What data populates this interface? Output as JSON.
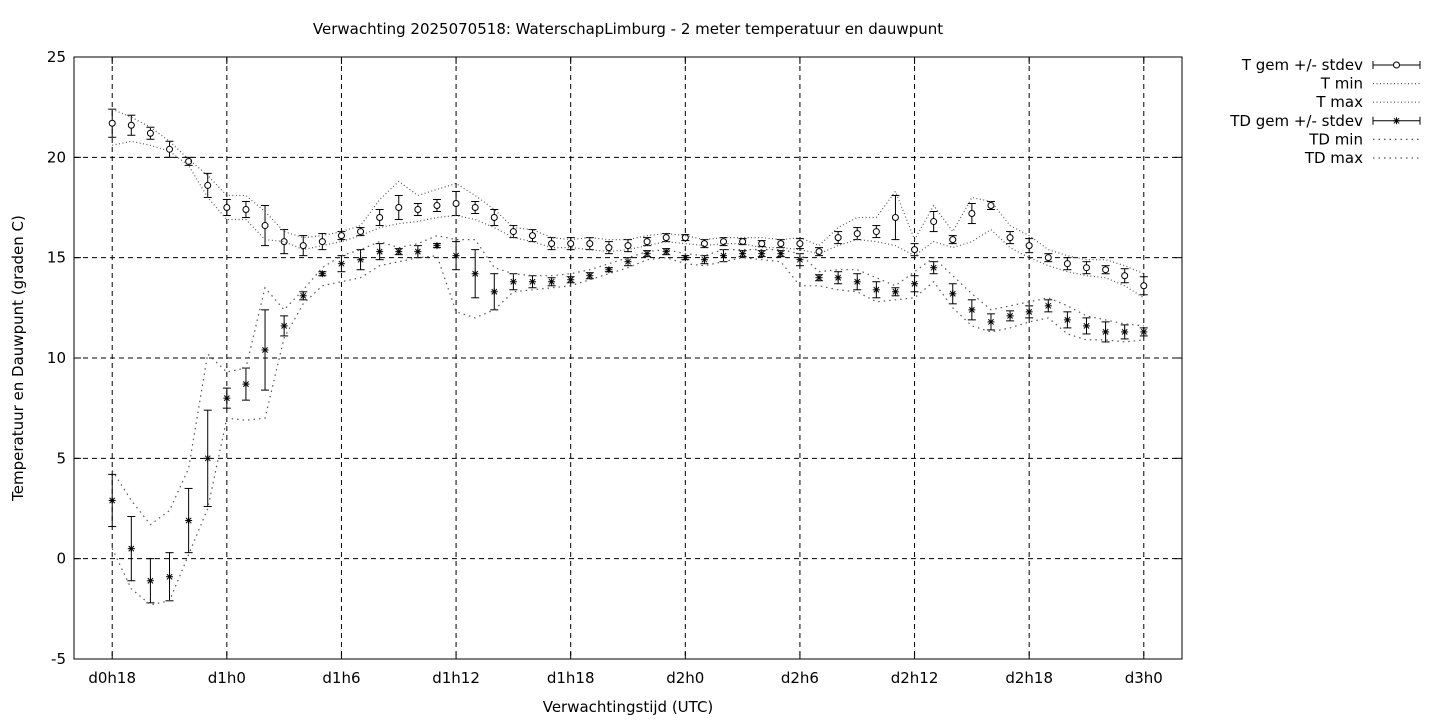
{
  "chart_data": {
    "type": "line",
    "title": "Verwachting 2025070518: WaterschapLimburg - 2 meter temperatuur en dauwpunt",
    "xlabel": "Verwachtingstijd (UTC)",
    "ylabel": "Temperatuur en Dauwpunt (graden C)",
    "ylim": [
      -5,
      25
    ],
    "xlim": [
      -2,
      56
    ],
    "grid": true,
    "legend_position": "right",
    "x_hours": [
      0,
      1,
      2,
      3,
      4,
      5,
      6,
      7,
      8,
      9,
      10,
      11,
      12,
      13,
      14,
      15,
      16,
      17,
      18,
      19,
      20,
      21,
      22,
      23,
      24,
      25,
      26,
      27,
      28,
      29,
      30,
      31,
      32,
      33,
      34,
      35,
      36,
      37,
      38,
      39,
      40,
      41,
      42,
      43,
      44,
      45,
      46,
      47,
      48,
      49,
      50,
      51,
      52,
      53,
      54
    ],
    "x_ticks": [
      {
        "x": 0,
        "label": "d0h18"
      },
      {
        "x": 6,
        "label": "d1h0"
      },
      {
        "x": 12,
        "label": "d1h6"
      },
      {
        "x": 18,
        "label": "d1h12"
      },
      {
        "x": 24,
        "label": "d1h18"
      },
      {
        "x": 30,
        "label": "d2h0"
      },
      {
        "x": 36,
        "label": "d2h6"
      },
      {
        "x": 42,
        "label": "d2h12"
      },
      {
        "x": 48,
        "label": "d2h18"
      },
      {
        "x": 54,
        "label": "d3h0"
      }
    ],
    "y_ticks": [
      -5,
      0,
      5,
      10,
      15,
      20,
      25
    ],
    "series": [
      {
        "name": "T gem +/- stdev",
        "style": "errorbars-circle",
        "mean": [
          21.7,
          21.6,
          21.2,
          20.4,
          19.8,
          18.6,
          17.5,
          17.4,
          16.6,
          15.8,
          15.6,
          15.8,
          16.1,
          16.3,
          17.0,
          17.5,
          17.4,
          17.6,
          17.7,
          17.5,
          17.0,
          16.3,
          16.1,
          15.7,
          15.7,
          15.7,
          15.5,
          15.6,
          15.8,
          16.0,
          16.0,
          15.7,
          15.8,
          15.8,
          15.7,
          15.7,
          15.7,
          15.3,
          16.0,
          16.2,
          16.3,
          17.0,
          15.4,
          16.8,
          15.9,
          17.2,
          17.6,
          16.0,
          15.6,
          15.0,
          14.7,
          14.5,
          14.4,
          14.1,
          13.6
        ],
        "stdev": [
          0.7,
          0.5,
          0.3,
          0.4,
          0.2,
          0.6,
          0.4,
          0.4,
          1.0,
          0.6,
          0.5,
          0.4,
          0.2,
          0.2,
          0.4,
          0.6,
          0.3,
          0.3,
          0.6,
          0.3,
          0.4,
          0.3,
          0.3,
          0.3,
          0.3,
          0.3,
          0.3,
          0.3,
          0.2,
          0.2,
          0.15,
          0.2,
          0.2,
          0.15,
          0.15,
          0.2,
          0.25,
          0.2,
          0.3,
          0.3,
          0.3,
          1.1,
          0.3,
          0.5,
          0.2,
          0.5,
          0.2,
          0.3,
          0.35,
          0.2,
          0.3,
          0.3,
          0.2,
          0.35,
          0.45
        ]
      },
      {
        "name": "T min",
        "style": "dotted",
        "values": [
          20.6,
          20.8,
          20.6,
          20.3,
          19.6,
          18.0,
          16.9,
          16.9,
          15.9,
          15.8,
          15.4,
          15.6,
          15.8,
          16.1,
          16.5,
          16.7,
          16.8,
          17.0,
          17.1,
          16.9,
          16.5,
          16.0,
          15.8,
          15.5,
          15.5,
          15.4,
          15.3,
          15.4,
          15.6,
          15.8,
          15.7,
          15.6,
          15.7,
          15.7,
          15.5,
          15.5,
          15.4,
          15.2,
          15.6,
          15.9,
          15.8,
          15.6,
          15.1,
          15.8,
          15.5,
          15.8,
          16.4,
          15.5,
          15.0,
          14.6,
          14.3,
          14.1,
          14.0,
          13.6,
          13.0
        ]
      },
      {
        "name": "T max",
        "style": "dotted",
        "values": [
          22.4,
          22.0,
          21.5,
          20.8,
          19.9,
          19.1,
          18.1,
          18.1,
          17.3,
          16.3,
          16.0,
          16.1,
          16.3,
          16.6,
          17.9,
          18.8,
          18.1,
          18.4,
          18.7,
          18.1,
          17.4,
          16.5,
          16.4,
          16.0,
          15.9,
          16.0,
          15.9,
          15.9,
          16.1,
          16.2,
          16.1,
          15.9,
          16.0,
          16.0,
          16.0,
          15.9,
          16.0,
          15.6,
          16.5,
          17.0,
          17.0,
          18.3,
          15.9,
          17.6,
          16.3,
          18.0,
          17.8,
          16.6,
          16.1,
          15.4,
          15.1,
          14.9,
          14.9,
          14.6,
          14.2
        ]
      },
      {
        "name": "TD gem +/- stdev",
        "style": "errorbars-star",
        "mean": [
          2.9,
          0.5,
          -1.1,
          -0.9,
          1.9,
          5.0,
          8.0,
          8.7,
          10.4,
          11.6,
          13.1,
          14.2,
          14.7,
          14.9,
          15.3,
          15.3,
          15.3,
          15.6,
          15.1,
          14.2,
          13.3,
          13.8,
          13.8,
          13.8,
          13.9,
          14.1,
          14.4,
          14.8,
          15.2,
          15.3,
          15.0,
          14.9,
          15.1,
          15.2,
          15.2,
          15.2,
          14.9,
          14.0,
          14.0,
          13.8,
          13.4,
          13.3,
          13.7,
          14.5,
          13.2,
          12.4,
          11.8,
          12.1,
          12.3,
          12.6,
          11.9,
          11.6,
          11.3,
          11.3,
          11.3
        ],
        "stdev": [
          1.3,
          1.6,
          1.1,
          1.2,
          1.6,
          2.4,
          0.5,
          0.8,
          2.0,
          0.5,
          0.2,
          0.1,
          0.4,
          0.5,
          0.4,
          0.15,
          0.3,
          0.1,
          0.7,
          1.2,
          0.9,
          0.4,
          0.3,
          0.2,
          0.15,
          0.15,
          0.1,
          0.2,
          0.15,
          0.15,
          0.1,
          0.2,
          0.3,
          0.15,
          0.15,
          0.15,
          0.3,
          0.15,
          0.3,
          0.4,
          0.4,
          0.2,
          0.4,
          0.3,
          0.5,
          0.5,
          0.4,
          0.25,
          0.3,
          0.3,
          0.4,
          0.4,
          0.5,
          0.35,
          0.2
        ]
      },
      {
        "name": "TD min",
        "style": "dotted",
        "values": [
          0.5,
          -1.5,
          -2.3,
          -2.1,
          0.2,
          2.5,
          7.0,
          6.9,
          7.0,
          11.0,
          12.7,
          13.6,
          13.8,
          14.0,
          14.6,
          14.8,
          15.0,
          15.1,
          12.3,
          12.0,
          12.4,
          13.3,
          13.4,
          13.5,
          13.6,
          13.9,
          14.2,
          14.5,
          14.9,
          15.0,
          14.7,
          14.6,
          14.8,
          15.0,
          14.9,
          14.8,
          13.6,
          13.6,
          13.4,
          13.3,
          12.8,
          12.9,
          13.0,
          13.8,
          12.5,
          11.6,
          11.3,
          11.5,
          11.8,
          12.0,
          11.2,
          10.9,
          10.9,
          10.8,
          10.9
        ]
      },
      {
        "name": "TD max",
        "style": "dotted",
        "values": [
          4.4,
          2.9,
          1.7,
          2.4,
          4.5,
          10.2,
          9.3,
          9.5,
          13.5,
          12.4,
          13.4,
          14.5,
          15.1,
          15.4,
          15.8,
          15.5,
          15.7,
          16.1,
          15.9,
          15.9,
          14.5,
          14.2,
          14.1,
          14.1,
          14.2,
          14.4,
          14.7,
          15.0,
          15.3,
          15.4,
          15.2,
          15.1,
          15.4,
          15.4,
          15.4,
          15.4,
          15.2,
          14.3,
          14.4,
          14.4,
          14.0,
          13.6,
          14.3,
          15.0,
          14.1,
          13.2,
          12.4,
          12.6,
          12.8,
          13.0,
          12.6,
          12.1,
          11.9,
          11.7,
          11.6
        ]
      }
    ]
  }
}
